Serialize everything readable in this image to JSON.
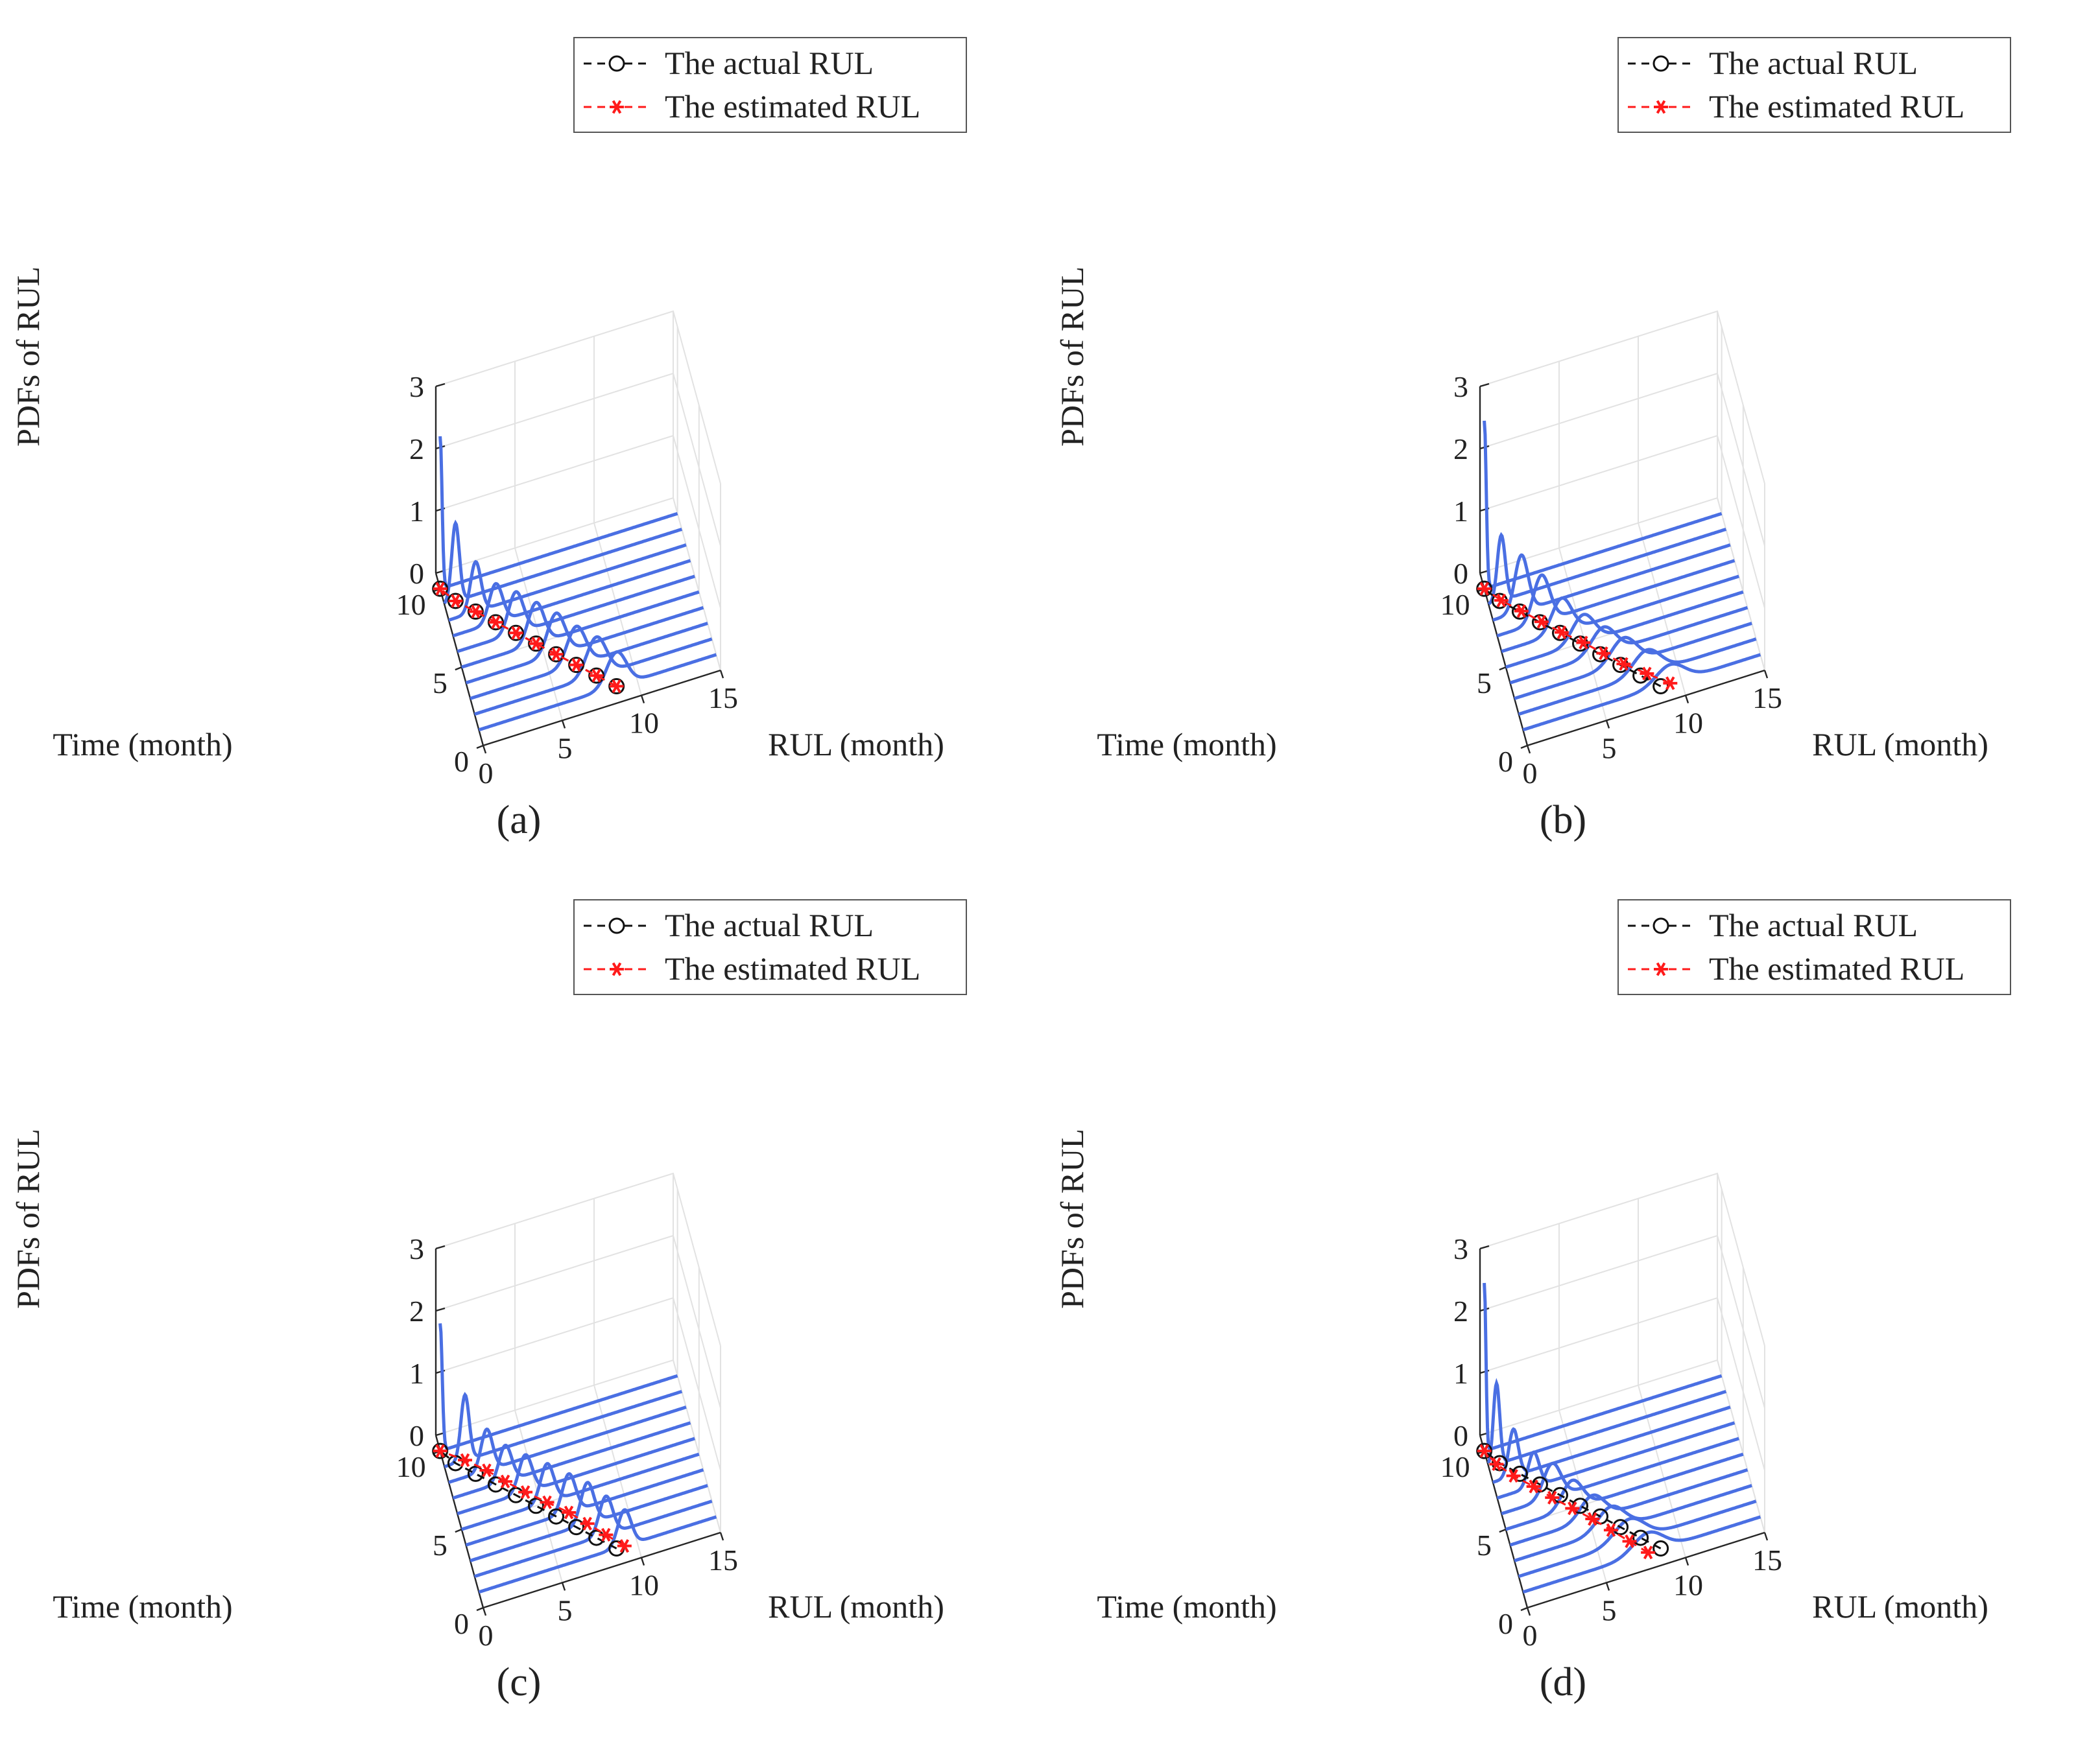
{
  "figure": {
    "panel_captions": [
      "(a)",
      "(b)",
      "(c)",
      "(d)"
    ]
  },
  "colors": {
    "pdf_curve": "#4a6fe3",
    "actual": "#111111",
    "estimated": "#ff1a1a",
    "grid": "#e2e2e2",
    "axis": "#262626"
  },
  "chart_data": [
    {
      "type": "line3d",
      "caption": "(a)",
      "xlabel": "Time (month)",
      "ylabel": "RUL (month)",
      "zlabel": "PDFs of RUL",
      "xlim": [
        0,
        11
      ],
      "ylim": [
        0,
        15
      ],
      "zlim": [
        0,
        3
      ],
      "xticks": [
        0,
        5,
        10
      ],
      "yticks": [
        0,
        5,
        10,
        15
      ],
      "zticks": [
        0,
        1,
        2,
        3
      ],
      "legend": [
        "The actual RUL",
        "The estimated RUL"
      ],
      "times": [
        1,
        2,
        3,
        4,
        5,
        6,
        7,
        8,
        9,
        10
      ],
      "actual_rul": [
        8.7,
        7.7,
        6.7,
        5.7,
        4.7,
        3.7,
        2.7,
        1.7,
        0.7,
        0
      ],
      "estimated_rul": [
        8.7,
        7.7,
        6.7,
        5.7,
        4.7,
        3.7,
        2.7,
        1.7,
        0.7,
        0
      ],
      "pdf_peaks": [
        0.55,
        0.62,
        0.62,
        0.66,
        0.66,
        0.66,
        0.62,
        0.8,
        1.25,
        2.45
      ],
      "pdf_spread": [
        0.62,
        0.62,
        0.58,
        0.55,
        0.5,
        0.47,
        0.42,
        0.33,
        0.24,
        0.12
      ]
    },
    {
      "type": "line3d",
      "caption": "(b)",
      "xlabel": "Time (month)",
      "ylabel": "RUL (month)",
      "zlabel": "PDFs of RUL",
      "xlim": [
        0,
        11
      ],
      "ylim": [
        0,
        15
      ],
      "zlim": [
        0,
        3
      ],
      "xticks": [
        0,
        5,
        10
      ],
      "yticks": [
        0,
        5,
        10,
        15
      ],
      "zticks": [
        0,
        1,
        2,
        3
      ],
      "legend": [
        "The actual RUL",
        "The estimated RUL"
      ],
      "times": [
        1,
        2,
        3,
        4,
        5,
        6,
        7,
        8,
        9,
        10
      ],
      "actual_rul": [
        8.7,
        7.7,
        6.7,
        5.7,
        4.7,
        3.7,
        2.7,
        1.7,
        0.7,
        0
      ],
      "estimated_rul": [
        9.3,
        8.1,
        6.9,
        5.9,
        4.9,
        3.8,
        2.8,
        1.8,
        0.8,
        0
      ],
      "pdf_peaks": [
        0.3,
        0.38,
        0.42,
        0.42,
        0.45,
        0.55,
        0.75,
        0.9,
        1.05,
        2.7
      ],
      "pdf_spread": [
        0.9,
        0.85,
        0.8,
        0.75,
        0.7,
        0.62,
        0.52,
        0.42,
        0.25,
        0.12
      ]
    },
    {
      "type": "line3d",
      "caption": "(c)",
      "xlabel": "Time (month)",
      "ylabel": "RUL (month)",
      "zlabel": "PDFs of RUL",
      "xlim": [
        0,
        11
      ],
      "ylim": [
        0,
        15
      ],
      "zlim": [
        0,
        3
      ],
      "xticks": [
        0,
        5,
        10
      ],
      "yticks": [
        0,
        5,
        10,
        15
      ],
      "zticks": [
        0,
        1,
        2,
        3
      ],
      "legend": [
        "The actual RUL",
        "The estimated RUL"
      ],
      "times": [
        1,
        2,
        3,
        4,
        5,
        6,
        7,
        8,
        9,
        10
      ],
      "actual_rul": [
        8.7,
        7.7,
        6.7,
        5.7,
        4.7,
        3.7,
        2.7,
        1.7,
        0.7,
        0
      ],
      "estimated_rul": [
        9.2,
        8.3,
        7.4,
        6.5,
        5.4,
        4.3,
        3.3,
        2.4,
        1.3,
        0
      ],
      "pdf_peaks": [
        0.58,
        0.62,
        0.66,
        0.62,
        0.62,
        0.6,
        0.58,
        0.66,
        1.05,
        2.05
      ],
      "pdf_spread": [
        0.42,
        0.42,
        0.42,
        0.42,
        0.42,
        0.42,
        0.4,
        0.36,
        0.26,
        0.13
      ]
    },
    {
      "type": "line3d",
      "caption": "(d)",
      "xlabel": "Time (month)",
      "ylabel": "RUL (month)",
      "zlabel": "PDFs of RUL",
      "xlim": [
        0,
        11
      ],
      "ylim": [
        0,
        15
      ],
      "zlim": [
        0,
        3
      ],
      "xticks": [
        0,
        5,
        10
      ],
      "yticks": [
        0,
        5,
        10,
        15
      ],
      "zticks": [
        0,
        1,
        2,
        3
      ],
      "legend": [
        "The actual RUL",
        "The estimated RUL"
      ],
      "times": [
        1,
        2,
        3,
        4,
        5,
        6,
        7,
        8,
        9,
        10
      ],
      "actual_rul": [
        8.7,
        7.7,
        6.7,
        5.7,
        4.7,
        3.7,
        2.7,
        1.7,
        0.7,
        0
      ],
      "estimated_rul": [
        7.9,
        7.0,
        6.1,
        5.2,
        4.2,
        3.2,
        2.3,
        1.3,
        0.5,
        0
      ],
      "pdf_peaks": [
        0.32,
        0.36,
        0.38,
        0.38,
        0.45,
        0.55,
        0.55,
        0.75,
        1.3,
        2.7
      ],
      "pdf_spread": [
        0.95,
        0.95,
        0.85,
        0.75,
        0.65,
        0.55,
        0.35,
        0.3,
        0.2,
        0.1
      ]
    }
  ]
}
